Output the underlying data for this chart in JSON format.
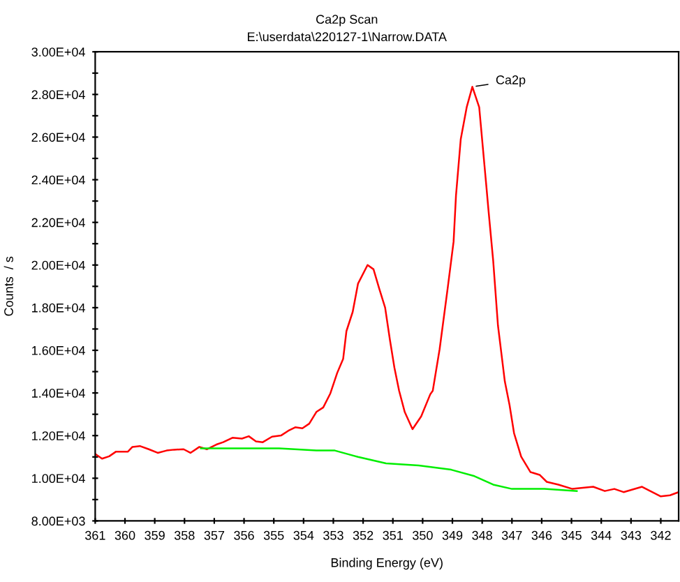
{
  "chart_data": {
    "type": "line",
    "title": "Ca2p Scan",
    "subtitle": "E:\\userdata\\220127-1\\Narrow.DATA",
    "xlabel": "Binding Energy (eV)",
    "ylabel": "Counts  / s",
    "annotations": [
      {
        "text": "Ca2p",
        "x": 348.33,
        "y": 28360
      }
    ],
    "series": [
      {
        "color": "#ff0000",
        "x": [
          361,
          360.77,
          360.53,
          360.3,
          359.9,
          359.75,
          359.5,
          359.2,
          358.9,
          358.6,
          358.35,
          358.03,
          357.8,
          357.5,
          357.25,
          356.93,
          356.7,
          356.39,
          356.07,
          355.84,
          355.6,
          355.37,
          355.06,
          354.75,
          354.51,
          354.28,
          354.04,
          353.81,
          353.57,
          353.34,
          353.1,
          352.87,
          352.67,
          352.56,
          352.35,
          352.17,
          351.85,
          351.65,
          351.46,
          351.26,
          351.1,
          350.95,
          350.79,
          350.6,
          350.34,
          350.05,
          349.74,
          349.66,
          349.43,
          349.16,
          348.96,
          348.88,
          348.72,
          348.52,
          348.33,
          348.1,
          347.86,
          347.79,
          347.63,
          347.47,
          347.24,
          347.08,
          346.93,
          346.69,
          346.38,
          346.07,
          345.83,
          345.44,
          344.97,
          344.27,
          343.88,
          343.56,
          343.25,
          342.63,
          342.0,
          341.69,
          341.4
        ],
        "values": [
          11140,
          10920,
          11030,
          11250,
          11250,
          11470,
          11510,
          11360,
          11190,
          11300,
          11340,
          11360,
          11190,
          11470,
          11360,
          11580,
          11690,
          11900,
          11860,
          11970,
          11730,
          11690,
          11950,
          12010,
          12230,
          12390,
          12340,
          12560,
          13110,
          13320,
          13980,
          14940,
          15600,
          16900,
          17800,
          19130,
          20000,
          19800,
          18900,
          18000,
          16500,
          15200,
          14100,
          13100,
          12300,
          12900,
          13950,
          14100,
          16050,
          18900,
          21100,
          23250,
          25900,
          27400,
          28360,
          27400,
          23700,
          22600,
          20200,
          17170,
          14550,
          13430,
          12120,
          11010,
          10290,
          10160,
          9830,
          9700,
          9500,
          9600,
          9400,
          9500,
          9350,
          9600,
          9150,
          9200,
          9350
        ]
      },
      {
        "color": "#00ee00",
        "x": [
          357.45,
          354.82,
          353.57,
          352.95,
          352.17,
          351.23,
          350.13,
          349.04,
          348.26,
          347.63,
          347.0,
          345.91,
          344.82
        ],
        "values": [
          11400,
          11400,
          11300,
          11300,
          11000,
          10700,
          10600,
          10400,
          10100,
          9700,
          9500,
          9500,
          9400
        ]
      }
    ],
    "xlim": [
      361,
      341.4
    ],
    "xticks": [
      361,
      360,
      359,
      358,
      357,
      356,
      355,
      354,
      353,
      352,
      351,
      350,
      349,
      348,
      347,
      346,
      345,
      344,
      343,
      342
    ],
    "ylim": [
      8000,
      30000
    ],
    "yticks": [
      {
        "value": 8000,
        "label": "8.00E+03"
      },
      {
        "value": 9000,
        "label": null
      },
      {
        "value": 10000,
        "label": "1.00E+04"
      },
      {
        "value": 11000,
        "label": null
      },
      {
        "value": 12000,
        "label": "1.20E+04"
      },
      {
        "value": 13000,
        "label": null
      },
      {
        "value": 14000,
        "label": "1.40E+04"
      },
      {
        "value": 15000,
        "label": null
      },
      {
        "value": 16000,
        "label": "1.60E+04"
      },
      {
        "value": 17000,
        "label": null
      },
      {
        "value": 18000,
        "label": "1.80E+04"
      },
      {
        "value": 19000,
        "label": null
      },
      {
        "value": 20000,
        "label": "2.00E+04"
      },
      {
        "value": 21000,
        "label": null
      },
      {
        "value": 22000,
        "label": "2.20E+04"
      },
      {
        "value": 23000,
        "label": null
      },
      {
        "value": 24000,
        "label": "2.40E+04"
      },
      {
        "value": 25000,
        "label": null
      },
      {
        "value": 26000,
        "label": "2.60E+04"
      },
      {
        "value": 27000,
        "label": null
      },
      {
        "value": 28000,
        "label": "2.80E+04"
      },
      {
        "value": 29000,
        "label": null
      },
      {
        "value": 30000,
        "label": "3.00E+04"
      }
    ],
    "grid": false,
    "legend": false
  }
}
